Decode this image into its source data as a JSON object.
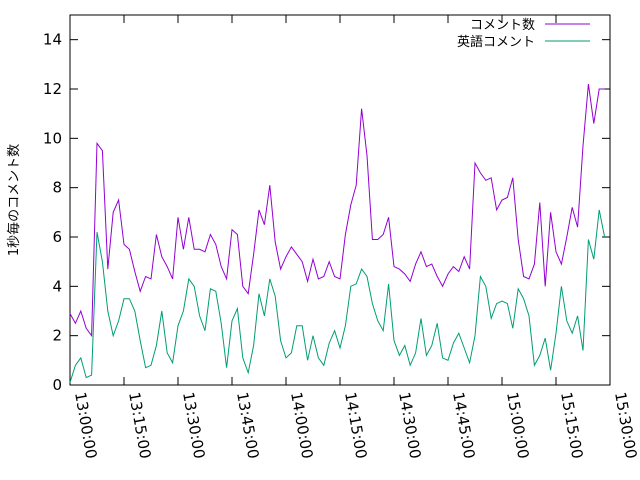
{
  "chart_data": {
    "type": "line",
    "title": "",
    "ylabel": "1秒毎のコメント数",
    "xlabel": "",
    "ylim": [
      0,
      15
    ],
    "xlim": [
      "13:00:00",
      "15:30:00"
    ],
    "grid": false,
    "legend_position": "top-right",
    "y_ticks": [
      "0",
      "2",
      "4",
      "6",
      "8",
      "10",
      "12",
      "14"
    ],
    "x_ticks": [
      "13:00:00",
      "13:15:00",
      "13:30:00",
      "13:45:00",
      "14:00:00",
      "14:15:00",
      "14:30:00",
      "14:45:00",
      "15:00:00",
      "15:15:00",
      "15:30:00"
    ],
    "series": [
      {
        "name": "コメント数",
        "color": "#9400d3",
        "points": [
          [
            "13:00:00",
            2.9
          ],
          [
            "13:01:30",
            2.5
          ],
          [
            "13:03:00",
            3.0
          ],
          [
            "13:04:30",
            2.3
          ],
          [
            "13:06:00",
            2.0
          ],
          [
            "13:07:30",
            9.8
          ],
          [
            "13:09:00",
            9.5
          ],
          [
            "13:10:30",
            4.7
          ],
          [
            "13:12:00",
            7.0
          ],
          [
            "13:13:30",
            7.5
          ],
          [
            "13:15:00",
            5.7
          ],
          [
            "13:16:30",
            5.5
          ],
          [
            "13:18:00",
            4.6
          ],
          [
            "13:19:30",
            3.8
          ],
          [
            "13:21:00",
            4.4
          ],
          [
            "13:22:30",
            4.3
          ],
          [
            "13:24:00",
            6.1
          ],
          [
            "13:25:30",
            5.2
          ],
          [
            "13:27:00",
            4.8
          ],
          [
            "13:28:30",
            4.3
          ],
          [
            "13:30:00",
            6.8
          ],
          [
            "13:31:30",
            5.5
          ],
          [
            "13:33:00",
            6.8
          ],
          [
            "13:34:30",
            5.5
          ],
          [
            "13:36:00",
            5.5
          ],
          [
            "13:37:30",
            5.4
          ],
          [
            "13:39:00",
            6.1
          ],
          [
            "13:40:30",
            5.7
          ],
          [
            "13:42:00",
            4.8
          ],
          [
            "13:43:30",
            4.3
          ],
          [
            "13:45:00",
            6.3
          ],
          [
            "13:46:30",
            6.1
          ],
          [
            "13:48:00",
            4.0
          ],
          [
            "13:49:30",
            3.7
          ],
          [
            "13:51:00",
            5.3
          ],
          [
            "13:52:30",
            7.1
          ],
          [
            "13:54:00",
            6.5
          ],
          [
            "13:55:30",
            8.1
          ],
          [
            "13:57:00",
            5.8
          ],
          [
            "13:58:30",
            4.7
          ],
          [
            "14:00:00",
            5.2
          ],
          [
            "14:01:30",
            5.6
          ],
          [
            "14:03:00",
            5.3
          ],
          [
            "14:04:30",
            5.0
          ],
          [
            "14:06:00",
            4.2
          ],
          [
            "14:07:30",
            5.1
          ],
          [
            "14:09:00",
            4.3
          ],
          [
            "14:10:30",
            4.4
          ],
          [
            "14:12:00",
            5.0
          ],
          [
            "14:13:30",
            4.4
          ],
          [
            "14:15:00",
            4.3
          ],
          [
            "14:16:30",
            6.1
          ],
          [
            "14:18:00",
            7.3
          ],
          [
            "14:19:30",
            8.1
          ],
          [
            "14:21:00",
            11.2
          ],
          [
            "14:22:30",
            9.3
          ],
          [
            "14:24:00",
            5.9
          ],
          [
            "14:25:30",
            5.9
          ],
          [
            "14:27:00",
            6.1
          ],
          [
            "14:28:30",
            6.8
          ],
          [
            "14:30:00",
            4.8
          ],
          [
            "14:31:30",
            4.7
          ],
          [
            "14:33:00",
            4.5
          ],
          [
            "14:34:30",
            4.2
          ],
          [
            "14:36:00",
            4.9
          ],
          [
            "14:37:30",
            5.4
          ],
          [
            "14:39:00",
            4.8
          ],
          [
            "14:40:30",
            4.9
          ],
          [
            "14:42:00",
            4.4
          ],
          [
            "14:43:30",
            4.0
          ],
          [
            "14:45:00",
            4.5
          ],
          [
            "14:46:30",
            4.8
          ],
          [
            "14:48:00",
            4.6
          ],
          [
            "14:49:30",
            5.2
          ],
          [
            "14:51:00",
            4.7
          ],
          [
            "14:52:30",
            9.0
          ],
          [
            "14:54:00",
            8.6
          ],
          [
            "14:55:30",
            8.3
          ],
          [
            "14:57:00",
            8.4
          ],
          [
            "14:58:30",
            7.1
          ],
          [
            "15:00:00",
            7.5
          ],
          [
            "15:01:30",
            7.6
          ],
          [
            "15:03:00",
            8.4
          ],
          [
            "15:04:30",
            5.9
          ],
          [
            "15:06:00",
            4.4
          ],
          [
            "15:07:30",
            4.3
          ],
          [
            "15:09:00",
            4.9
          ],
          [
            "15:10:30",
            7.4
          ],
          [
            "15:12:00",
            4.0
          ],
          [
            "15:13:30",
            7.0
          ],
          [
            "15:15:00",
            5.4
          ],
          [
            "15:16:30",
            4.9
          ],
          [
            "15:18:00",
            6.0
          ],
          [
            "15:19:30",
            7.2
          ],
          [
            "15:21:00",
            6.4
          ],
          [
            "15:22:30",
            9.7
          ],
          [
            "15:24:00",
            12.2
          ],
          [
            "15:25:30",
            10.6
          ],
          [
            "15:27:00",
            12.0
          ],
          [
            "15:28:30",
            12.0
          ]
        ]
      },
      {
        "name": "英語コメント",
        "color": "#009e73",
        "points": [
          [
            "13:00:00",
            0.1
          ],
          [
            "13:01:30",
            0.8
          ],
          [
            "13:03:00",
            1.1
          ],
          [
            "13:04:30",
            0.3
          ],
          [
            "13:06:00",
            0.4
          ],
          [
            "13:07:30",
            6.2
          ],
          [
            "13:09:00",
            5.0
          ],
          [
            "13:10:30",
            3.0
          ],
          [
            "13:12:00",
            2.0
          ],
          [
            "13:13:30",
            2.6
          ],
          [
            "13:15:00",
            3.5
          ],
          [
            "13:16:30",
            3.5
          ],
          [
            "13:18:00",
            3.0
          ],
          [
            "13:19:30",
            1.8
          ],
          [
            "13:21:00",
            0.7
          ],
          [
            "13:22:30",
            0.8
          ],
          [
            "13:24:00",
            1.6
          ],
          [
            "13:25:30",
            3.0
          ],
          [
            "13:27:00",
            1.3
          ],
          [
            "13:28:30",
            0.9
          ],
          [
            "13:30:00",
            2.4
          ],
          [
            "13:31:30",
            3.0
          ],
          [
            "13:33:00",
            4.3
          ],
          [
            "13:34:30",
            4.0
          ],
          [
            "13:36:00",
            2.8
          ],
          [
            "13:37:30",
            2.2
          ],
          [
            "13:39:00",
            3.9
          ],
          [
            "13:40:30",
            3.8
          ],
          [
            "13:42:00",
            2.5
          ],
          [
            "13:43:30",
            0.7
          ],
          [
            "13:45:00",
            2.6
          ],
          [
            "13:46:30",
            3.1
          ],
          [
            "13:48:00",
            1.1
          ],
          [
            "13:49:30",
            0.5
          ],
          [
            "13:51:00",
            1.6
          ],
          [
            "13:52:30",
            3.7
          ],
          [
            "13:54:00",
            2.8
          ],
          [
            "13:55:30",
            4.3
          ],
          [
            "13:57:00",
            3.6
          ],
          [
            "13:58:30",
            1.8
          ],
          [
            "14:00:00",
            1.1
          ],
          [
            "14:01:30",
            1.3
          ],
          [
            "14:03:00",
            2.4
          ],
          [
            "14:04:30",
            2.4
          ],
          [
            "14:06:00",
            1.0
          ],
          [
            "14:07:30",
            2.0
          ],
          [
            "14:09:00",
            1.1
          ],
          [
            "14:10:30",
            0.8
          ],
          [
            "14:12:00",
            1.7
          ],
          [
            "14:13:30",
            2.2
          ],
          [
            "14:15:00",
            1.5
          ],
          [
            "14:16:30",
            2.4
          ],
          [
            "14:18:00",
            4.0
          ],
          [
            "14:19:30",
            4.1
          ],
          [
            "14:21:00",
            4.7
          ],
          [
            "14:22:30",
            4.4
          ],
          [
            "14:24:00",
            3.3
          ],
          [
            "14:25:30",
            2.6
          ],
          [
            "14:27:00",
            2.2
          ],
          [
            "14:28:30",
            4.1
          ],
          [
            "14:30:00",
            1.8
          ],
          [
            "14:31:30",
            1.2
          ],
          [
            "14:33:00",
            1.6
          ],
          [
            "14:34:30",
            0.8
          ],
          [
            "14:36:00",
            1.3
          ],
          [
            "14:37:30",
            2.7
          ],
          [
            "14:39:00",
            1.2
          ],
          [
            "14:40:30",
            1.6
          ],
          [
            "14:42:00",
            2.5
          ],
          [
            "14:43:30",
            1.1
          ],
          [
            "14:45:00",
            1.0
          ],
          [
            "14:46:30",
            1.7
          ],
          [
            "14:48:00",
            2.1
          ],
          [
            "14:49:30",
            1.5
          ],
          [
            "14:51:00",
            0.9
          ],
          [
            "14:52:30",
            2.0
          ],
          [
            "14:54:00",
            4.4
          ],
          [
            "14:55:30",
            4.0
          ],
          [
            "14:57:00",
            2.7
          ],
          [
            "14:58:30",
            3.3
          ],
          [
            "15:00:00",
            3.4
          ],
          [
            "15:01:30",
            3.3
          ],
          [
            "15:03:00",
            2.3
          ],
          [
            "15:04:30",
            3.9
          ],
          [
            "15:06:00",
            3.5
          ],
          [
            "15:07:30",
            2.8
          ],
          [
            "15:09:00",
            0.8
          ],
          [
            "15:10:30",
            1.2
          ],
          [
            "15:12:00",
            1.9
          ],
          [
            "15:13:30",
            0.6
          ],
          [
            "15:15:00",
            2.1
          ],
          [
            "15:16:30",
            4.0
          ],
          [
            "15:18:00",
            2.6
          ],
          [
            "15:19:30",
            2.1
          ],
          [
            "15:21:00",
            2.8
          ],
          [
            "15:22:30",
            1.4
          ],
          [
            "15:24:00",
            5.9
          ],
          [
            "15:25:30",
            5.1
          ],
          [
            "15:27:00",
            7.1
          ],
          [
            "15:28:30",
            6.0
          ]
        ]
      }
    ]
  }
}
